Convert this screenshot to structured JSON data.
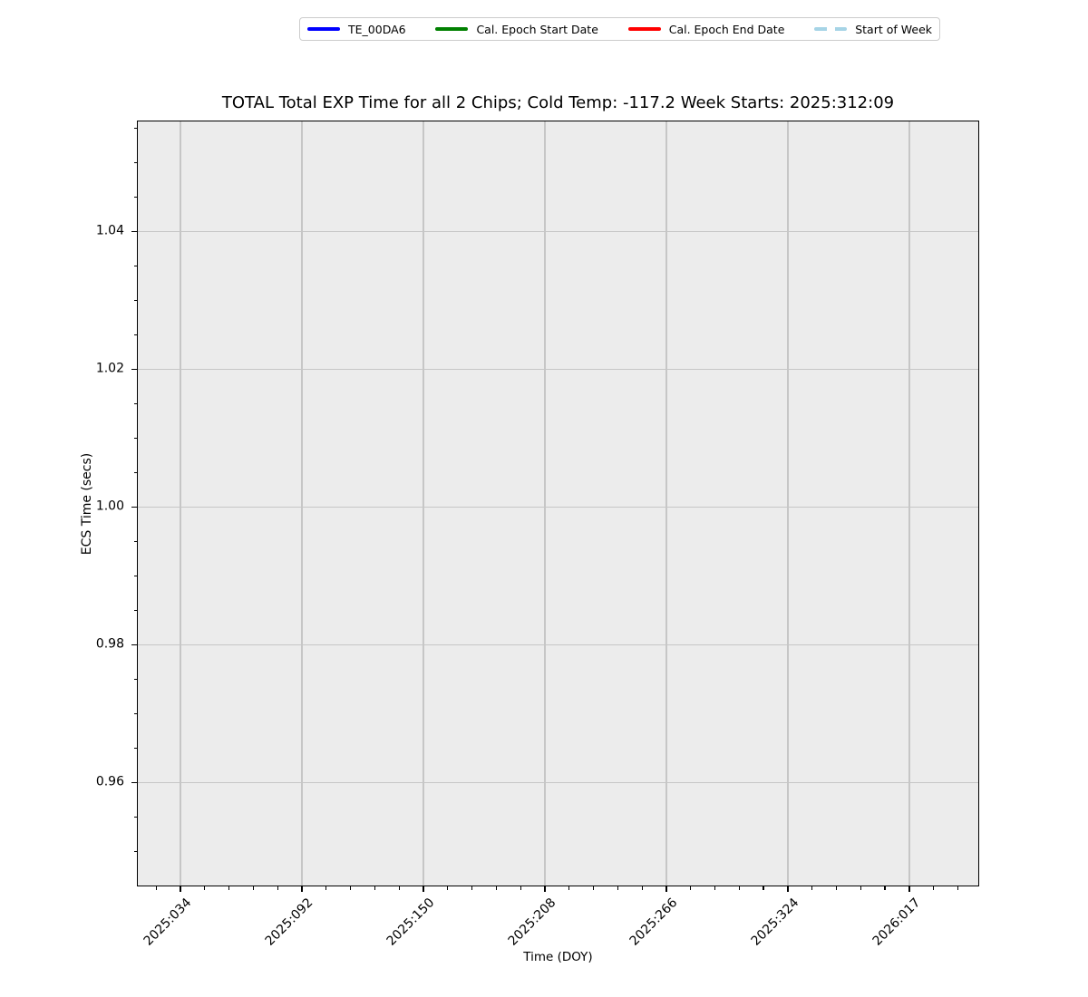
{
  "chart_data": {
    "type": "line",
    "title": "TOTAL Total EXP Time for all 2 Chips; Cold Temp: -117.2 Week Starts: 2025:312:09",
    "xlabel": "Time (DOY)",
    "ylabel": "ECS Time (secs)",
    "series": [],
    "grid": true,
    "legend_position": "top-center",
    "x_axis": {
      "tick_values": [
        34,
        92,
        150,
        208,
        266,
        324,
        382
      ],
      "tick_labels": [
        "2025:034",
        "2025:092",
        "2025:150",
        "2025:208",
        "2025:266",
        "2025:324",
        "2026:017"
      ],
      "lim": [
        13.22,
        415.33
      ],
      "minor_step": 11.6
    },
    "y_axis": {
      "tick_values": [
        0.96,
        0.98,
        1.0,
        1.02,
        1.04
      ],
      "tick_labels": [
        "0.96",
        "0.98",
        "1.00",
        "1.02",
        "1.04"
      ],
      "lim": [
        0.9449,
        1.0561
      ],
      "minor_step": 0.005
    }
  },
  "legend": {
    "items": [
      {
        "label": "TE_00DA6",
        "color": "#0000ff",
        "style": "solid"
      },
      {
        "label": "Cal. Epoch Start Date",
        "color": "#008000",
        "style": "solid"
      },
      {
        "label": "Cal. Epoch End Date",
        "color": "#ff0000",
        "style": "solid"
      },
      {
        "label": "Start of Week",
        "color": "#a6d4e6",
        "style": "dashed"
      }
    ]
  },
  "colors": {
    "figure_background": "#ffffff",
    "plot_background": "#ececec",
    "grid": "#c6c6c6",
    "spine": "#000000",
    "tick": "#000000",
    "text": "#000000"
  }
}
